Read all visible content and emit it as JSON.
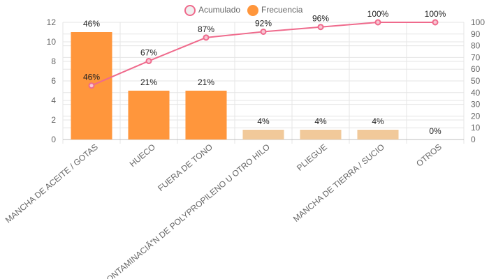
{
  "legend": {
    "cumulative_label": "Acumulado",
    "frequency_label": "Frecuencia"
  },
  "colors": {
    "bar_primary": "#FF963C",
    "bar_secondary": "#F1C99A",
    "line": "#EF6A8C",
    "grid": "#E5E5E5",
    "text": "#666666",
    "label": "#222222"
  },
  "chart_data": {
    "type": "bar",
    "categories": [
      "MANCHA DE ACEITE / GOTAS",
      "HUECO",
      "FUERA DE TONO",
      "CONTAMINACIÃN DE POLYPROPILENO U OTRO HILO",
      "PLIEGUE",
      "MANCHA DE TIERRA / SUCIO",
      "OTROS"
    ],
    "series": [
      {
        "name": "Frecuencia",
        "type": "bar",
        "axis": "left",
        "values": [
          11,
          5,
          5,
          1,
          1,
          1,
          0
        ],
        "labels": [
          "46%",
          "21%",
          "21%",
          "4%",
          "4%",
          "4%",
          "0%"
        ]
      },
      {
        "name": "Acumulado",
        "type": "line",
        "axis": "right",
        "values": [
          46,
          67,
          87,
          92,
          96,
          100,
          100
        ],
        "labels": [
          "46%",
          "67%",
          "87%",
          "92%",
          "96%",
          "100%",
          "100%"
        ]
      }
    ],
    "y_left": {
      "min": 0,
      "max": 12,
      "ticks": [
        0,
        2,
        4,
        6,
        8,
        10,
        12
      ]
    },
    "y_right": {
      "min": 0,
      "max": 100,
      "ticks": [
        0,
        10,
        20,
        30,
        40,
        50,
        60,
        70,
        80,
        90,
        100
      ]
    },
    "grid": true,
    "legend_position": "top-center"
  }
}
